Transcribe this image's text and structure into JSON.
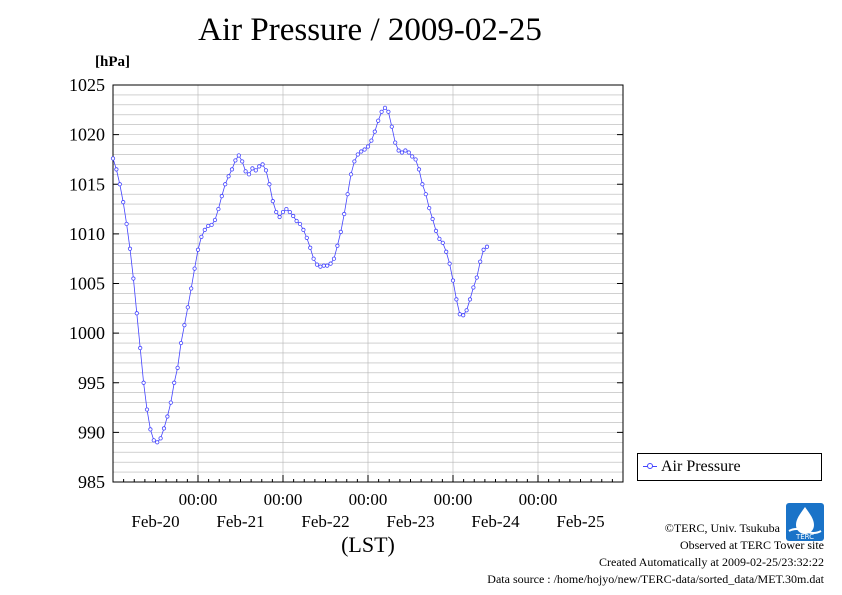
{
  "chart_data": {
    "type": "line",
    "title": "Air Pressure / 2009-02-25",
    "ylabel": "[hPa]",
    "xlabel": "(LST)",
    "ylim": [
      985,
      1025
    ],
    "yticks": [
      985,
      990,
      995,
      1000,
      1005,
      1010,
      1015,
      1020,
      1025
    ],
    "xlim": [
      0,
      6
    ],
    "time_ticks": [
      "00:00",
      "00:00",
      "00:00",
      "00:00",
      "00:00"
    ],
    "date_labels": [
      "Feb-20",
      "Feb-21",
      "Feb-22",
      "Feb-23",
      "Feb-24",
      "Feb-25"
    ],
    "grid": true,
    "legend_position": "right",
    "series": [
      {
        "name": "Air Pressure",
        "color": "#4444ff",
        "x_unit": "days from start of Feb-19 window (LST)",
        "points": [
          [
            0.0,
            1017.6
          ],
          [
            0.04,
            1016.5
          ],
          [
            0.08,
            1015.0
          ],
          [
            0.12,
            1013.2
          ],
          [
            0.16,
            1011.0
          ],
          [
            0.2,
            1008.5
          ],
          [
            0.24,
            1005.5
          ],
          [
            0.28,
            1002.0
          ],
          [
            0.32,
            998.5
          ],
          [
            0.36,
            995.0
          ],
          [
            0.4,
            992.3
          ],
          [
            0.44,
            990.3
          ],
          [
            0.48,
            989.2
          ],
          [
            0.52,
            989.0
          ],
          [
            0.56,
            989.4
          ],
          [
            0.6,
            990.4
          ],
          [
            0.64,
            991.6
          ],
          [
            0.68,
            993.0
          ],
          [
            0.72,
            995.0
          ],
          [
            0.76,
            996.5
          ],
          [
            0.8,
            999.0
          ],
          [
            0.84,
            1000.8
          ],
          [
            0.88,
            1002.6
          ],
          [
            0.92,
            1004.5
          ],
          [
            0.96,
            1006.5
          ],
          [
            1.0,
            1008.4
          ],
          [
            1.04,
            1009.7
          ],
          [
            1.08,
            1010.4
          ],
          [
            1.12,
            1010.8
          ],
          [
            1.16,
            1010.9
          ],
          [
            1.2,
            1011.4
          ],
          [
            1.24,
            1012.5
          ],
          [
            1.28,
            1013.8
          ],
          [
            1.32,
            1015.0
          ],
          [
            1.36,
            1015.8
          ],
          [
            1.4,
            1016.5
          ],
          [
            1.44,
            1017.4
          ],
          [
            1.48,
            1017.9
          ],
          [
            1.52,
            1017.3
          ],
          [
            1.56,
            1016.3
          ],
          [
            1.6,
            1016.0
          ],
          [
            1.64,
            1016.6
          ],
          [
            1.68,
            1016.4
          ],
          [
            1.72,
            1016.8
          ],
          [
            1.76,
            1017.0
          ],
          [
            1.8,
            1016.4
          ],
          [
            1.84,
            1015.0
          ],
          [
            1.88,
            1013.3
          ],
          [
            1.92,
            1012.2
          ],
          [
            1.96,
            1011.7
          ],
          [
            2.0,
            1012.2
          ],
          [
            2.04,
            1012.5
          ],
          [
            2.08,
            1012.2
          ],
          [
            2.12,
            1011.8
          ],
          [
            2.16,
            1011.3
          ],
          [
            2.2,
            1011.0
          ],
          [
            2.24,
            1010.4
          ],
          [
            2.28,
            1009.6
          ],
          [
            2.32,
            1008.6
          ],
          [
            2.36,
            1007.5
          ],
          [
            2.4,
            1006.9
          ],
          [
            2.44,
            1006.7
          ],
          [
            2.48,
            1006.8
          ],
          [
            2.52,
            1006.8
          ],
          [
            2.56,
            1007.0
          ],
          [
            2.6,
            1007.5
          ],
          [
            2.64,
            1008.8
          ],
          [
            2.68,
            1010.2
          ],
          [
            2.72,
            1012.0
          ],
          [
            2.76,
            1014.0
          ],
          [
            2.8,
            1016.0
          ],
          [
            2.84,
            1017.3
          ],
          [
            2.88,
            1018.0
          ],
          [
            2.92,
            1018.3
          ],
          [
            2.96,
            1018.5
          ],
          [
            3.0,
            1018.8
          ],
          [
            3.04,
            1019.4
          ],
          [
            3.08,
            1020.3
          ],
          [
            3.12,
            1021.4
          ],
          [
            3.16,
            1022.3
          ],
          [
            3.2,
            1022.7
          ],
          [
            3.24,
            1022.3
          ],
          [
            3.28,
            1020.8
          ],
          [
            3.32,
            1019.2
          ],
          [
            3.36,
            1018.4
          ],
          [
            3.4,
            1018.2
          ],
          [
            3.44,
            1018.4
          ],
          [
            3.48,
            1018.2
          ],
          [
            3.52,
            1017.8
          ],
          [
            3.56,
            1017.5
          ],
          [
            3.6,
            1016.5
          ],
          [
            3.64,
            1015.0
          ],
          [
            3.68,
            1014.0
          ],
          [
            3.72,
            1012.6
          ],
          [
            3.76,
            1011.5
          ],
          [
            3.8,
            1010.3
          ],
          [
            3.84,
            1009.5
          ],
          [
            3.88,
            1009.1
          ],
          [
            3.92,
            1008.2
          ],
          [
            3.96,
            1007.0
          ],
          [
            4.0,
            1005.3
          ],
          [
            4.04,
            1003.4
          ],
          [
            4.08,
            1001.9
          ],
          [
            4.12,
            1001.8
          ],
          [
            4.16,
            1002.3
          ],
          [
            4.2,
            1003.4
          ],
          [
            4.24,
            1004.6
          ],
          [
            4.28,
            1005.6
          ],
          [
            4.32,
            1007.2
          ],
          [
            4.36,
            1008.4
          ],
          [
            4.4,
            1008.7
          ]
        ]
      }
    ],
    "x_note": "ticks 00:00 at Feb-20..Feb-24; plotted span ends late Feb-25"
  },
  "legend": {
    "label": "Air Pressure"
  },
  "credits": {
    "copyright": "©TERC, Univ. Tsukuba",
    "observed": "Observed at TERC Tower site",
    "created": "Created Automatically at 2009-02-25/23:32:22",
    "source": "Data source : /home/hojyo/new/TERC-data/sorted_data/MET.30m.dat"
  },
  "logo_text": "TERC"
}
